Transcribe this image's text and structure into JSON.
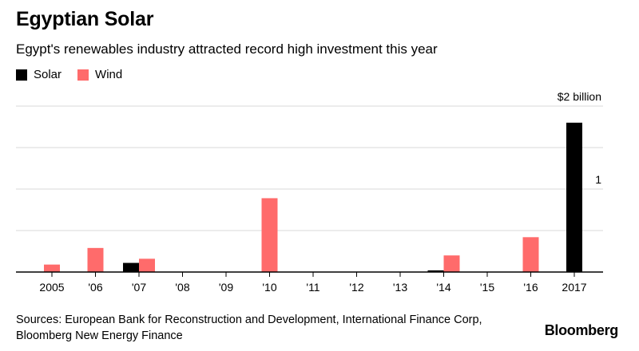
{
  "header": {
    "title": "Egyptian Solar",
    "subtitle": "Egypt's renewables industry attracted record high investment this year"
  },
  "legend": {
    "solar": "Solar",
    "wind": "Wind"
  },
  "colors": {
    "solar": "#000000",
    "wind": "#ff6b6b",
    "grid": "#d9d9d9",
    "axis": "#000000"
  },
  "chart_data": {
    "type": "bar",
    "title": "Egyptian Solar",
    "subtitle": "Egypt's renewables industry attracted record high investment this year",
    "xlabel": "",
    "ylabel": "",
    "units": "$ billion",
    "ylim": [
      0,
      2
    ],
    "yticks": [
      {
        "value": 2,
        "label": "$2 billion"
      },
      {
        "value": 1,
        "label": "1"
      }
    ],
    "gridlines": [
      0.5,
      1,
      1.5,
      2
    ],
    "categories": [
      "2005",
      "'06",
      "'07",
      "'08",
      "'09",
      "'10",
      "'11",
      "'12",
      "'13",
      "'14",
      "'15",
      "'16",
      "2017"
    ],
    "series": [
      {
        "name": "Solar",
        "values": [
          0,
          0,
          0.11,
          0,
          0,
          0,
          0,
          0,
          0,
          0.02,
          0,
          0,
          1.8
        ]
      },
      {
        "name": "Wind",
        "values": [
          0.09,
          0.29,
          0.16,
          0,
          0,
          0.89,
          0,
          0,
          0,
          0.2,
          0,
          0.42,
          0
        ]
      }
    ]
  },
  "footer": {
    "source_line1": "Sources: European Bank for Reconstruction and Development, International Finance Corp,",
    "source_line2": "Bloomberg New Energy Finance",
    "logo": "Bloomberg"
  }
}
